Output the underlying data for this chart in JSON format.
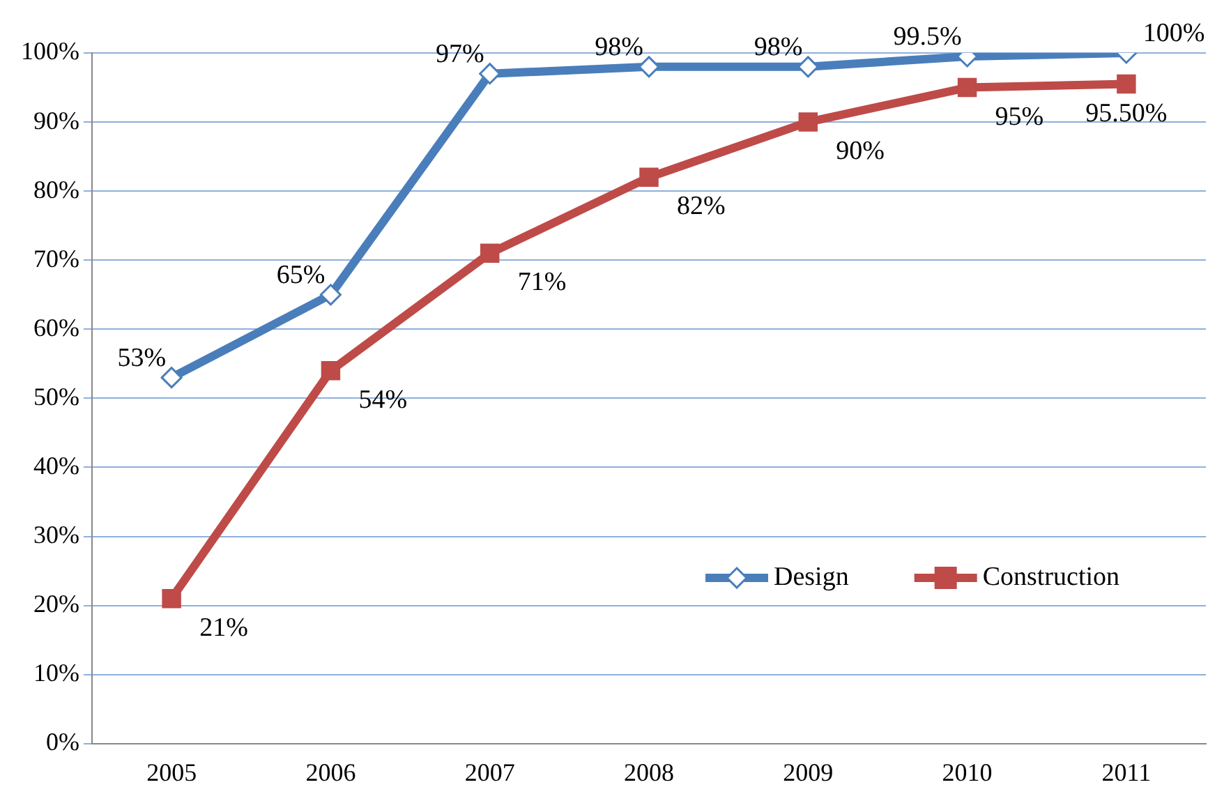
{
  "chart_data": {
    "type": "line",
    "categories": [
      "2005",
      "2006",
      "2007",
      "2008",
      "2009",
      "2010",
      "2011"
    ],
    "series": [
      {
        "name": "Design",
        "color": "#4a7ebb",
        "marker": "diamond",
        "values": [
          53,
          65,
          97,
          98,
          98,
          99.5,
          100
        ],
        "value_labels": [
          "53%",
          "65%",
          "97%",
          "98%",
          "98%",
          "99.5%",
          "100%"
        ]
      },
      {
        "name": "Construction",
        "color": "#be4b48",
        "marker": "square",
        "values": [
          21,
          54,
          71,
          82,
          90,
          95,
          95.5
        ],
        "value_labels": [
          "21%",
          "54%",
          "71%",
          "82%",
          "90%",
          "95%",
          "95.50%"
        ]
      }
    ],
    "ylim": [
      0,
      100
    ],
    "yticks": [
      {
        "value": 0,
        "label": "0%"
      },
      {
        "value": 10,
        "label": "10%"
      },
      {
        "value": 20,
        "label": "20%"
      },
      {
        "value": 30,
        "label": "30%"
      },
      {
        "value": 40,
        "label": "40%"
      },
      {
        "value": 50,
        "label": "50%"
      },
      {
        "value": 60,
        "label": "60%"
      },
      {
        "value": 70,
        "label": "70%"
      },
      {
        "value": 80,
        "label": "80%"
      },
      {
        "value": 90,
        "label": "90%"
      },
      {
        "value": 100,
        "label": "100%"
      }
    ],
    "grid": "y",
    "legend": "bottom right",
    "line_style": "solid"
  }
}
